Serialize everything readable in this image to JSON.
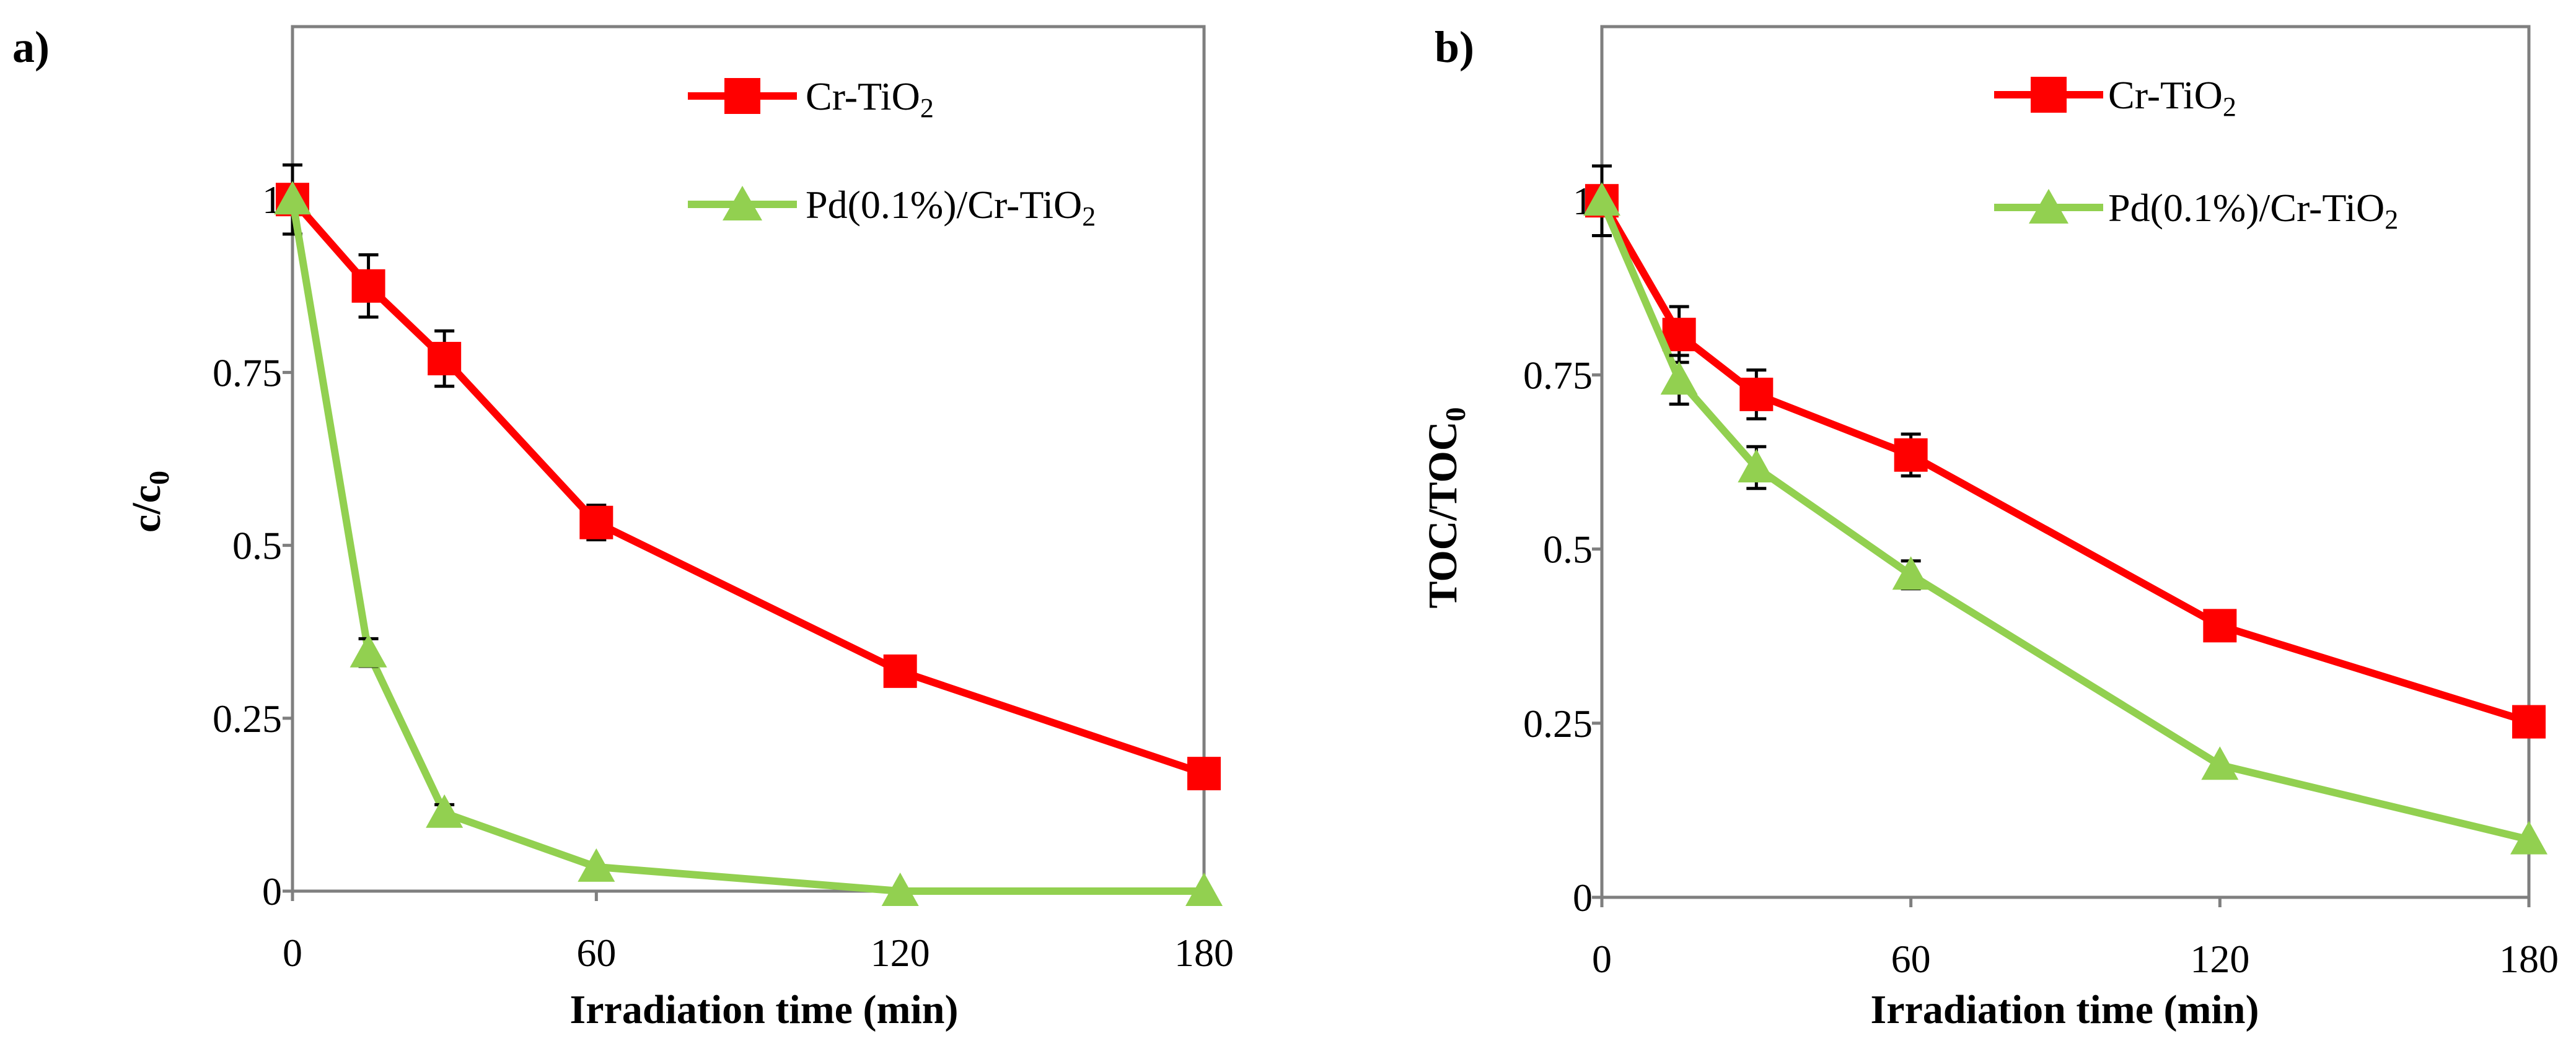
{
  "colors": {
    "cr_tio2": "#ff0000",
    "pd_cr_tio2": "#92d050",
    "axis": "#7f7f7f",
    "error_bar": "#000000"
  },
  "chart_data": [
    {
      "type": "line",
      "panel_label": "a)",
      "xlabel": "Irradiation time (min)",
      "ylabel": "c/c",
      "ylabel_sub": "0",
      "xlim": [
        0,
        180
      ],
      "ylim": [
        0,
        1.25
      ],
      "xticks": [
        0,
        60,
        120,
        180
      ],
      "yticks": [
        0,
        0.25,
        0.5,
        0.75,
        1
      ],
      "xtick_labels": [
        "0",
        "60",
        "120",
        "180"
      ],
      "ytick_labels": [
        "0",
        "0.25",
        "0.5",
        "0.75",
        "1"
      ],
      "legend_position": "top-right",
      "series": [
        {
          "name": "Cr-TiO",
          "name_sub": "2",
          "marker": "square",
          "x": [
            0,
            15,
            30,
            60,
            120,
            180
          ],
          "y": [
            1.0,
            0.875,
            0.77,
            0.533,
            0.318,
            0.17
          ],
          "err": [
            0.05,
            0.045,
            0.04,
            0.025,
            0,
            0
          ]
        },
        {
          "name": "Pd(0.1%)/Cr-TiO",
          "name_sub": "2",
          "marker": "triangle",
          "x": [
            0,
            15,
            30,
            60,
            120,
            180
          ],
          "y": [
            1.0,
            0.345,
            0.113,
            0.035,
            0.0,
            0.0
          ],
          "err": [
            0,
            0.02,
            0.012,
            0,
            0,
            0
          ]
        }
      ]
    },
    {
      "type": "line",
      "panel_label": "b)",
      "xlabel": "Irradiation time (min)",
      "ylabel": "TOC/TOC",
      "ylabel_sub": "0",
      "xlim": [
        0,
        180
      ],
      "ylim": [
        0,
        1.25
      ],
      "xticks": [
        0,
        60,
        120,
        180
      ],
      "yticks": [
        0,
        0.25,
        0.5,
        0.75,
        1
      ],
      "xtick_labels": [
        "0",
        "60",
        "120",
        "180"
      ],
      "ytick_labels": [
        "0",
        "0.25",
        "0.5",
        "0.75",
        "1"
      ],
      "legend_position": "top-right",
      "series": [
        {
          "name": "Cr-TiO",
          "name_sub": "2",
          "marker": "square",
          "x": [
            0,
            15,
            30,
            60,
            120,
            180
          ],
          "y": [
            1.0,
            0.808,
            0.722,
            0.635,
            0.39,
            0.252
          ],
          "err": [
            0.05,
            0.04,
            0.035,
            0.03,
            0,
            0
          ]
        },
        {
          "name": "Pd(0.1%)/Cr-TiO",
          "name_sub": "2",
          "marker": "triangle",
          "x": [
            0,
            15,
            30,
            60,
            120,
            180
          ],
          "y": [
            1.0,
            0.743,
            0.617,
            0.463,
            0.19,
            0.083
          ],
          "err": [
            0,
            0.035,
            0.03,
            0.02,
            0,
            0
          ]
        }
      ]
    }
  ]
}
